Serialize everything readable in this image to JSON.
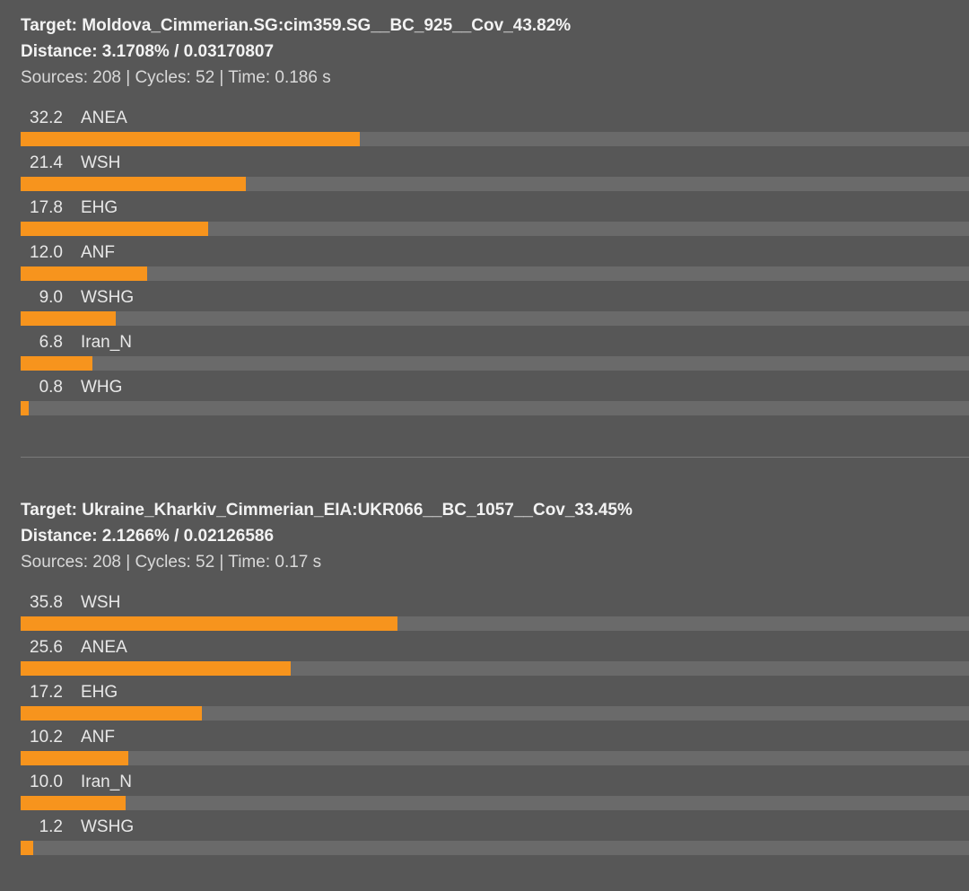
{
  "theme": {
    "background": "#575757",
    "bar_track": "#6a6a6a",
    "bar_fill": "#f7941d",
    "divider": "#7a7a7a",
    "title_text": "#f2f2f2",
    "meta_text": "#d9d9d9",
    "label_text": "#e8e8e8"
  },
  "chart_data": [
    {
      "type": "bar",
      "orientation": "horizontal",
      "title": "Target: Moldova_Cimmerian.SG:cim359.SG__BC_925__Cov_43.82%",
      "distance_label": "Distance: 3.1708% / 0.03170807",
      "meta_label": "Sources: 208 | Cycles: 52 | Time: 0.186 s",
      "categories": [
        "ANEA",
        "WSH",
        "EHG",
        "ANF",
        "WSHG",
        "Iran_N",
        "WHG"
      ],
      "values": [
        32.2,
        21.4,
        17.8,
        12.0,
        9.0,
        6.8,
        0.8
      ],
      "value_labels": [
        "32.2",
        "21.4",
        "17.8",
        "12.0",
        "9.0",
        "6.8",
        "0.8"
      ],
      "xlim": [
        0,
        90
      ],
      "grid": false,
      "legend": false
    },
    {
      "type": "bar",
      "orientation": "horizontal",
      "title": "Target: Ukraine_Kharkiv_Cimmerian_EIA:UKR066__BC_1057__Cov_33.45%",
      "distance_label": "Distance: 2.1266% / 0.02126586",
      "meta_label": "Sources: 208 | Cycles: 52 | Time: 0.17 s",
      "categories": [
        "WSH",
        "ANEA",
        "EHG",
        "ANF",
        "Iran_N",
        "WSHG"
      ],
      "values": [
        35.8,
        25.6,
        17.2,
        10.2,
        10.0,
        1.2
      ],
      "value_labels": [
        "35.8",
        "25.6",
        "17.2",
        "10.2",
        "10.0",
        "1.2"
      ],
      "xlim": [
        0,
        90
      ],
      "grid": false,
      "legend": false
    }
  ]
}
